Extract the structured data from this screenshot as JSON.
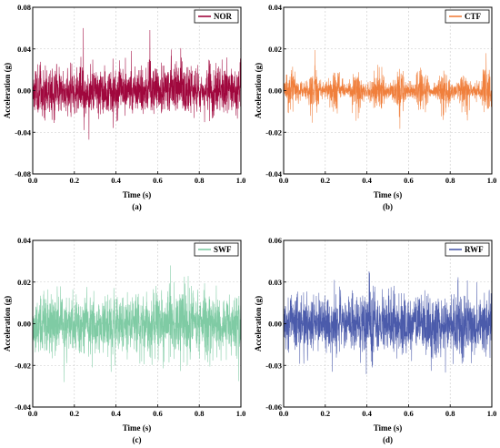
{
  "chart_data": [
    {
      "type": "line",
      "panel_label": "(a)",
      "legend": "NOR",
      "color": "#A0073D",
      "xlabel": "Time (s)",
      "ylabel": "Acceleration (g)",
      "xlim": [
        0.0,
        1.0
      ],
      "ylim": [
        -0.08,
        0.08
      ],
      "xticks": [
        "0.0",
        "0.2",
        "0.4",
        "0.6",
        "0.8",
        "1.0"
      ],
      "yticks": [
        "-0.08",
        "-0.04",
        "0.00",
        "0.04",
        "0.08"
      ],
      "ytick_values": [
        -0.08,
        -0.04,
        0.0,
        0.04,
        0.08
      ],
      "grid": true,
      "legend_position": "top-right",
      "amplitude_rms": 0.011,
      "peak_range": [
        -0.05,
        0.06
      ]
    },
    {
      "type": "line",
      "panel_label": "(b)",
      "legend": "CTF",
      "color": "#F07F3C",
      "xlabel": "Time (s)",
      "ylabel": "Acceleration (g)",
      "xlim": [
        0.0,
        1.0
      ],
      "ylim": [
        -0.04,
        0.04
      ],
      "xticks": [
        "0.0",
        "0.2",
        "0.4",
        "0.6",
        "0.8",
        "1.0"
      ],
      "yticks": [
        "-0.04",
        "-0.02",
        "0.00",
        "0.02",
        "0.04"
      ],
      "ytick_values": [
        -0.04,
        -0.02,
        0.0,
        0.02,
        0.04
      ],
      "grid": true,
      "legend_position": "top-right",
      "amplitude_rms": 0.004,
      "peak_range": [
        -0.022,
        0.025
      ]
    },
    {
      "type": "line",
      "panel_label": "(c)",
      "legend": "SWF",
      "color": "#7FCBA4",
      "xlabel": "Time (s)",
      "ylabel": "Acceleration (g)",
      "xlim": [
        0.0,
        1.0
      ],
      "ylim": [
        -0.04,
        0.04
      ],
      "xticks": [
        "0.0",
        "0.2",
        "0.4",
        "0.6",
        "0.8",
        "1.0"
      ],
      "yticks": [
        "-0.04",
        "-0.02",
        "0.00",
        "0.02",
        "0.04"
      ],
      "ytick_values": [
        -0.04,
        -0.02,
        0.0,
        0.02,
        0.04
      ],
      "grid": true,
      "legend_position": "top-right",
      "amplitude_rms": 0.007,
      "peak_range": [
        -0.035,
        0.028
      ]
    },
    {
      "type": "line",
      "panel_label": "(d)",
      "legend": "RWF",
      "color": "#4B5BAB",
      "xlabel": "Time (s)",
      "ylabel": "Acceleration (g)",
      "xlim": [
        0.0,
        1.0
      ],
      "ylim": [
        -0.06,
        0.06
      ],
      "xticks": [
        "0.0",
        "0.2",
        "0.4",
        "0.6",
        "0.8",
        "1.0"
      ],
      "yticks": [
        "-0.06",
        "-0.03",
        "0.00",
        "0.03",
        "0.06"
      ],
      "ytick_values": [
        -0.06,
        -0.03,
        0.0,
        0.03,
        0.06
      ],
      "grid": true,
      "legend_position": "top-right",
      "amplitude_rms": 0.01,
      "peak_range": [
        -0.045,
        0.05
      ]
    }
  ]
}
